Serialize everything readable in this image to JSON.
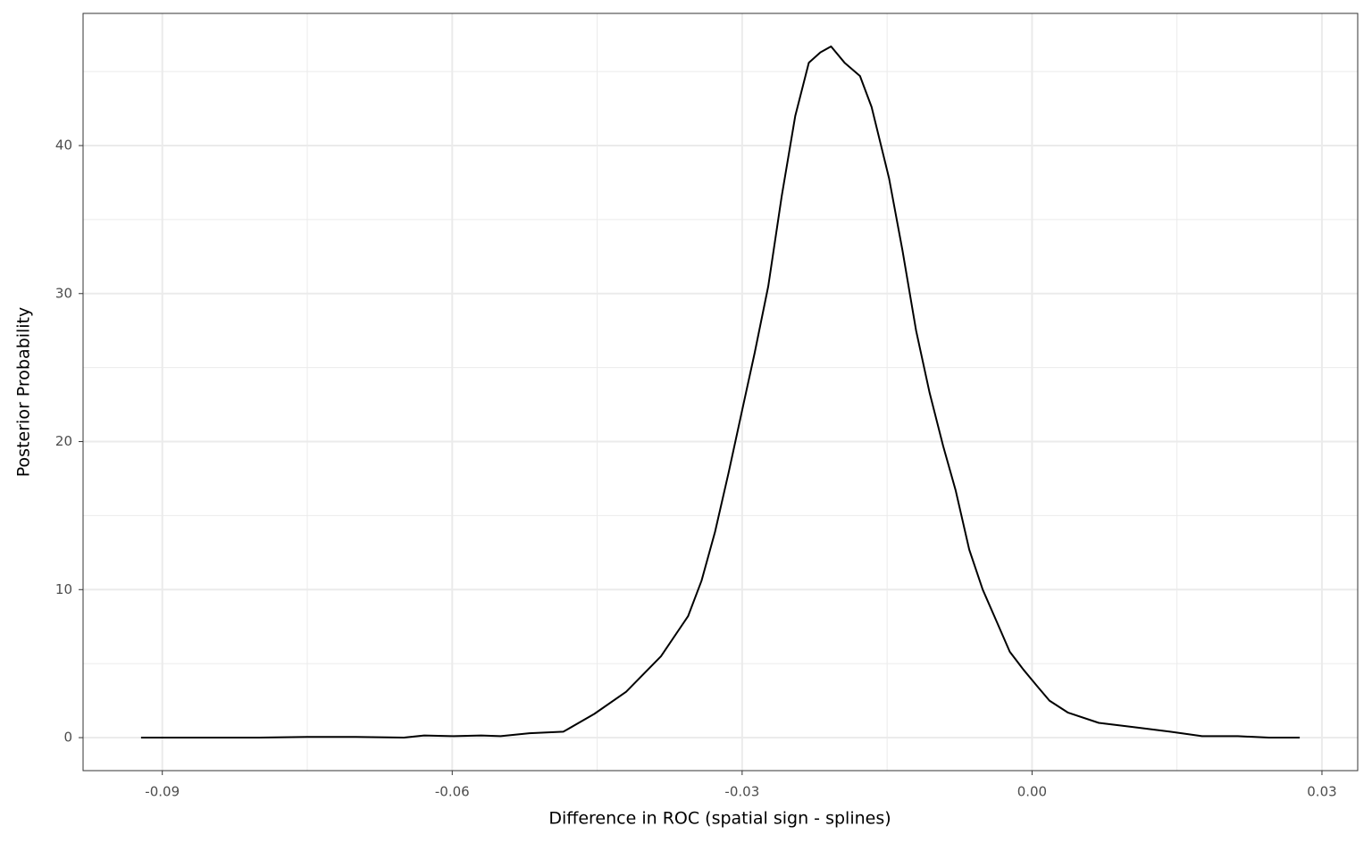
{
  "chart_data": {
    "type": "line",
    "x_label": "Difference in ROC (spatial sign - splines)",
    "y_label": "Posterior Probability",
    "x": [
      -0.0922,
      -0.08,
      -0.075,
      -0.07,
      -0.065,
      -0.0629,
      -0.06,
      -0.057,
      -0.055,
      -0.052,
      -0.0485,
      -0.0453,
      -0.042,
      -0.0384,
      -0.0356,
      -0.0342,
      -0.0328,
      -0.0314,
      -0.03,
      -0.0287,
      -0.0273,
      -0.0259,
      -0.0245,
      -0.0231,
      -0.0219,
      -0.0208,
      -0.0194,
      -0.0178,
      -0.0166,
      -0.0148,
      -0.0134,
      -0.012,
      -0.0106,
      -0.0092,
      -0.0079,
      -0.0065,
      -0.0051,
      -0.0037,
      -0.0023,
      -0.0009,
      0.0005,
      0.0018,
      0.0037,
      0.0069,
      0.0106,
      0.0143,
      0.0176,
      0.0213,
      0.0245,
      0.0277
    ],
    "series": [
      {
        "color": "#000000",
        "values": [
          0,
          0,
          0.05,
          0.05,
          0,
          0.15,
          0.1,
          0.15,
          0.1,
          0.3,
          0.4,
          1.6,
          3.1,
          5.5,
          8.2,
          10.6,
          13.9,
          17.9,
          22.1,
          26.0,
          30.5,
          36.6,
          42.0,
          45.6,
          46.3,
          46.7,
          45.6,
          44.7,
          42.6,
          37.8,
          32.9,
          27.5,
          23.3,
          19.7,
          16.7,
          12.7,
          10.0,
          7.9,
          5.8,
          4.6,
          3.5,
          2.5,
          1.7,
          1.0,
          0.7,
          0.4,
          0.1,
          0.1,
          0,
          0
        ]
      }
    ],
    "xlim": [
      -0.0982,
      0.0337
    ],
    "ylim": [
      -2.23,
      48.93
    ],
    "xticks": [
      -0.09,
      -0.06,
      -0.03,
      {
        "value": 0,
        "label": "0.00"
      },
      0.03
    ],
    "yticks": [
      0,
      10,
      20,
      30,
      40
    ],
    "grid": true
  }
}
